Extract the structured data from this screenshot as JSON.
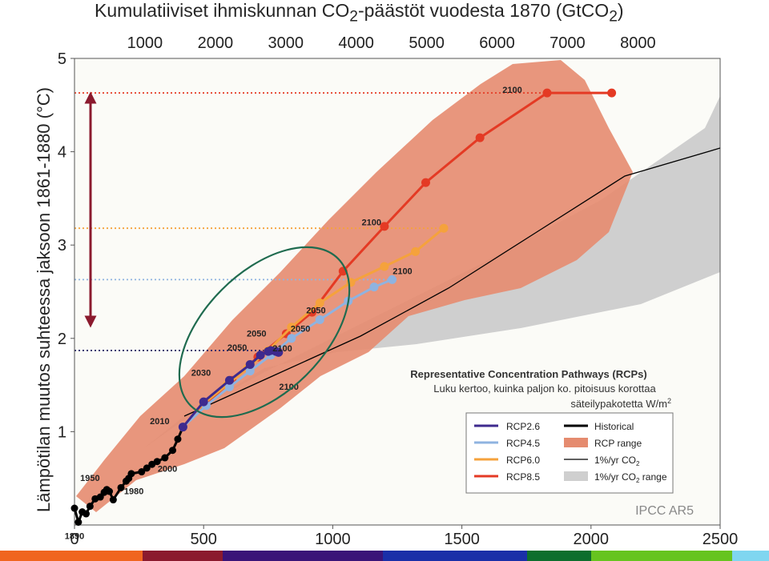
{
  "title": {
    "main": "Kumulatiiviset ihmiskunnan CO",
    "sub": "2",
    "mid": "-päästöt vuodesta 1870 (GtCO",
    "sub2": "2",
    "end": ")"
  },
  "ylabel": "Lämpötilan muutos suhteessa jaksoon 1861-1880 (°C)",
  "annotation": {
    "line1": "Representative Concentration Pathways (RCPs)",
    "line2": "Luku kertoo, kuinka paljon ko. pitoisuus korottaa",
    "line3": "säteilypakotetta W/m",
    "line3_sup": "2"
  },
  "legend": {
    "rcp26": "RCP2.6",
    "rcp45": "RCP4.5",
    "rcp60": "RCP6.0",
    "rcp85": "RCP8.5",
    "historical": "Historical",
    "rcp_range": "RCP range",
    "pct_pre": "1%/yr CO",
    "pct_sub": "2",
    "pct_range_pre": "1%/yr CO",
    "pct_range_sub": "2",
    "pct_range_post": " range"
  },
  "source": "IPCC AR5",
  "colors": {
    "rcp26": "#3e2a8e",
    "rcp45": "#8fb3e0",
    "rcp60": "#f5a23c",
    "rcp85": "#e43a24",
    "historical": "#000000",
    "rcp_range": "#e58b6f",
    "pct_range": "#cfcfcf",
    "ellipse": "#1f6b4f",
    "arrow": "#8b1a2e"
  },
  "chart_data": {
    "type": "line",
    "xlabel": "",
    "ylabel": "Lämpötilan muutos suhteessa jaksoon 1861-1880 (°C)",
    "xlim": [
      0,
      2500
    ],
    "ylim": [
      0,
      5
    ],
    "x_ticks": [
      0,
      500,
      1000,
      1500,
      2000,
      2500
    ],
    "y_ticks": [
      1,
      2,
      3,
      4,
      5
    ],
    "top_axis": {
      "label": "Kumulatiiviset ihmiskunnan CO2-päästöt vuodesta 1870 (GtCO2)",
      "ticks": [
        1000,
        2000,
        3000,
        4000,
        5000,
        6000,
        7000,
        8000
      ],
      "gtc_per_gtco2": 0.2727
    },
    "historical": {
      "x": [
        0,
        15,
        30,
        45,
        60,
        80,
        100,
        115,
        125,
        135,
        150,
        180,
        200,
        210,
        220,
        260,
        280,
        300,
        320,
        350,
        380,
        400,
        420
      ],
      "y": [
        0.18,
        0.03,
        0.14,
        0.12,
        0.2,
        0.28,
        0.3,
        0.35,
        0.38,
        0.36,
        0.27,
        0.4,
        0.47,
        0.5,
        0.55,
        0.57,
        0.61,
        0.65,
        0.68,
        0.72,
        0.8,
        0.92,
        1.05
      ]
    },
    "year_labels": [
      {
        "text": "1890",
        "x": 0,
        "y": -0.15
      },
      {
        "text": "1950",
        "x": 60,
        "y": 0.47
      },
      {
        "text": "1980",
        "x": 230,
        "y": 0.33
      },
      {
        "text": "2000",
        "x": 360,
        "y": 0.57
      },
      {
        "text": "2010",
        "x": 330,
        "y": 1.08
      },
      {
        "text": "2030",
        "x": 490,
        "y": 1.6
      },
      {
        "text": "2050",
        "x": 630,
        "y": 1.87
      },
      {
        "text": "2050",
        "x": 705,
        "y": 2.02
      },
      {
        "text": "2050",
        "x": 935,
        "y": 2.27
      },
      {
        "text": "2100",
        "x": 805,
        "y": 1.86
      },
      {
        "text": "2050",
        "x": 875,
        "y": 2.07
      },
      {
        "text": "2100",
        "x": 1150,
        "y": 3.21
      },
      {
        "text": "2100",
        "x": 1270,
        "y": 2.69
      },
      {
        "text": "2100",
        "x": 1695,
        "y": 4.63
      },
      {
        "text": "2100",
        "x": 830,
        "y": 1.45
      }
    ],
    "series": [
      {
        "name": "RCP2.6",
        "x": [
          420,
          500,
          600,
          680,
          720,
          750,
          760,
          780,
          790,
          790
        ],
        "y": [
          1.05,
          1.32,
          1.55,
          1.72,
          1.82,
          1.86,
          1.87,
          1.86,
          1.85,
          1.85
        ]
      },
      {
        "name": "RCP4.5",
        "x": [
          420,
          510,
          600,
          680,
          760,
          840,
          950,
          1060,
          1160,
          1230
        ],
        "y": [
          1.05,
          1.28,
          1.48,
          1.65,
          1.82,
          2.0,
          2.2,
          2.4,
          2.55,
          2.63
        ]
      },
      {
        "name": "RCP6.0",
        "x": [
          420,
          500,
          590,
          670,
          750,
          840,
          950,
          1070,
          1200,
          1320,
          1430
        ],
        "y": [
          1.05,
          1.3,
          1.5,
          1.68,
          1.87,
          2.12,
          2.38,
          2.6,
          2.77,
          2.93,
          3.18
        ]
      },
      {
        "name": "RCP8.5",
        "x": [
          420,
          510,
          610,
          710,
          820,
          920,
          1040,
          1200,
          1360,
          1570,
          1830,
          2080
        ],
        "y": [
          1.05,
          1.3,
          1.55,
          1.8,
          2.05,
          2.28,
          2.72,
          3.2,
          3.67,
          4.15,
          4.63,
          4.63
        ]
      }
    ],
    "reference_lines": [
      {
        "name": "RCP8.5",
        "y": 4.63
      },
      {
        "name": "RCP6.0",
        "y": 3.18
      },
      {
        "name": "RCP4.5",
        "y": 2.63
      },
      {
        "name": "RCP2.6",
        "y": 1.87
      }
    ]
  }
}
